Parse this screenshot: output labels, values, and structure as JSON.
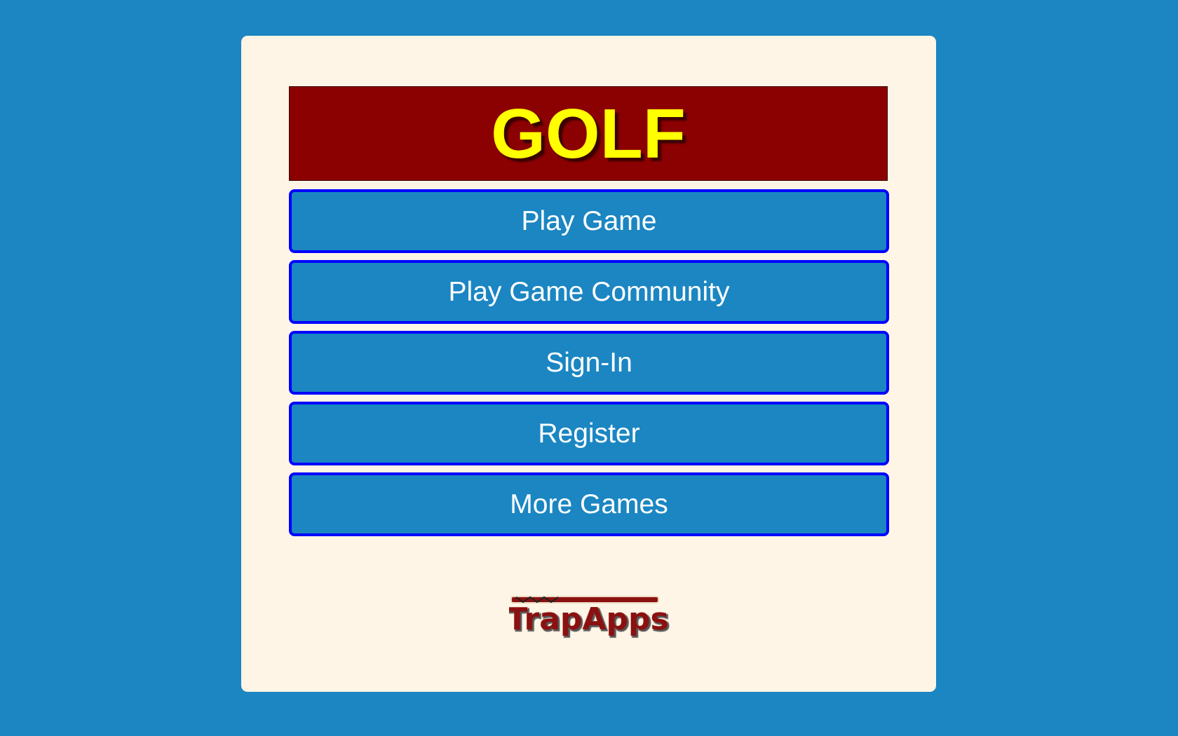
{
  "title": "GOLF",
  "buttons": [
    {
      "label": "Play Game"
    },
    {
      "label": "Play Game Community"
    },
    {
      "label": "Sign-In"
    },
    {
      "label": "Register"
    },
    {
      "label": "More Games"
    }
  ],
  "logo": {
    "text": "TrapApps"
  },
  "colors": {
    "background": "#1b86c2",
    "card": "#fff5e6",
    "title_bg": "#8b0000",
    "title_text": "#ffff00",
    "button_border": "#0000ff"
  }
}
